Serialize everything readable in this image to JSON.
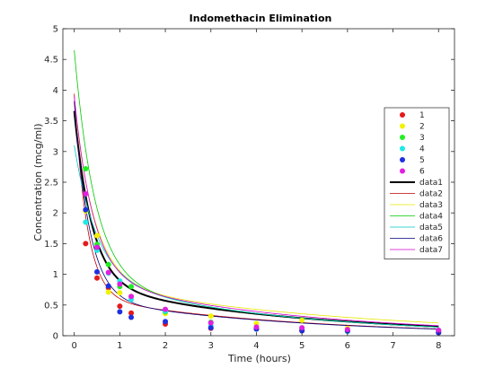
{
  "chart_data": {
    "type": "scatter",
    "title": "Indomethacin Elimination",
    "xlabel": "Time (hours)",
    "ylabel": "Concentration (mcg/ml)",
    "xlim": [
      -0.25,
      8.35
    ],
    "ylim": [
      0,
      5
    ],
    "xticks": [
      "0",
      "1",
      "2",
      "3",
      "4",
      "5",
      "6",
      "7",
      "8"
    ],
    "yticks": [
      "0",
      "0.5",
      "1",
      "1.5",
      "2",
      "2.5",
      "3",
      "3.5",
      "4",
      "4.5",
      "5"
    ],
    "grid": false,
    "legend_position": "right",
    "x": [
      0.25,
      0.5,
      0.75,
      1,
      1.25,
      2,
      3,
      4,
      5,
      6,
      8
    ],
    "scatter_series": [
      {
        "name": "1",
        "color": "#e41a1c",
        "y": [
          1.5,
          0.94,
          0.78,
          0.48,
          0.37,
          0.19,
          0.12,
          0.11,
          0.08,
          0.07,
          0.05
        ]
      },
      {
        "name": "2",
        "color": "#f2f200",
        "y": [
          2.03,
          1.63,
          0.71,
          0.7,
          0.64,
          0.36,
          0.32,
          0.2,
          0.25,
          0.12,
          0.08
        ]
      },
      {
        "name": "3",
        "color": "#22ee22",
        "y": [
          2.72,
          1.49,
          1.16,
          0.8,
          0.8,
          0.39,
          0.22,
          0.12,
          0.11,
          0.08,
          0.08
        ]
      },
      {
        "name": "4",
        "color": "#1ee8e8",
        "y": [
          1.85,
          1.39,
          1.02,
          0.89,
          0.59,
          0.4,
          0.16,
          0.11,
          0.1,
          0.07,
          0.07
        ]
      },
      {
        "name": "5",
        "color": "#1f30e0",
        "y": [
          2.05,
          1.04,
          0.81,
          0.39,
          0.3,
          0.23,
          0.13,
          0.11,
          0.08,
          0.08,
          0.05
        ]
      },
      {
        "name": "6",
        "color": "#e11fe1",
        "y": [
          2.31,
          1.44,
          1.03,
          0.84,
          0.64,
          0.43,
          0.21,
          0.14,
          0.13,
          0.1,
          0.09
        ]
      }
    ],
    "fit_series": [
      {
        "name": "data1",
        "color": "#000000",
        "width": 2,
        "a": 2.8,
        "k1": 2.6,
        "b": 0.86,
        "k2": 0.22
      },
      {
        "name": "data2",
        "color": "#c00000",
        "width": 0.8,
        "a": 3.3,
        "k1": 3.6,
        "b": 0.64,
        "k2": 0.22
      },
      {
        "name": "data3",
        "color": "#e6e600",
        "width": 0.8,
        "a": 2.9,
        "k1": 2.2,
        "b": 0.88,
        "k2": 0.18
      },
      {
        "name": "data4",
        "color": "#00c800",
        "width": 0.8,
        "a": 3.7,
        "k1": 2.2,
        "b": 0.95,
        "k2": 0.24
      },
      {
        "name": "data5",
        "color": "#00c8c8",
        "width": 0.8,
        "a": 2.15,
        "k1": 2.0,
        "b": 0.95,
        "k2": 0.24
      },
      {
        "name": "data6",
        "color": "#00007a",
        "width": 0.8,
        "a": 3.2,
        "k1": 3.0,
        "b": 0.62,
        "k2": 0.22
      },
      {
        "name": "data7",
        "color": "#d000d0",
        "width": 0.8,
        "a": 2.95,
        "k1": 2.4,
        "b": 0.95,
        "k2": 0.22
      }
    ]
  }
}
